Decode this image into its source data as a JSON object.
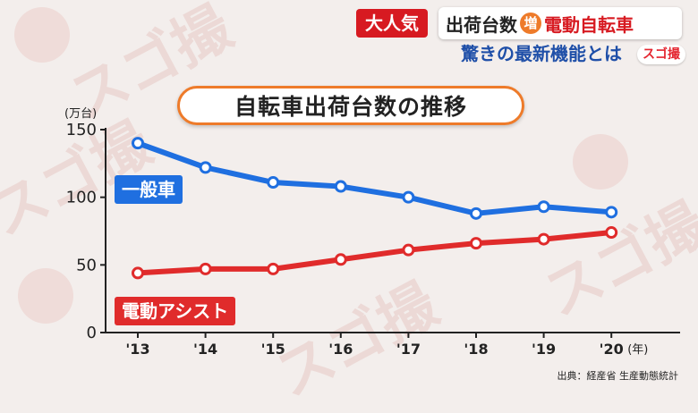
{
  "caption": {
    "tag": "大人気",
    "line1_a": "出荷台数",
    "line1_badge": "増",
    "line1_b": "電動自転車",
    "line2": "驚きの最新機能とは",
    "logo": "スゴ撮"
  },
  "watermark": "スゴ撮",
  "chart_data": {
    "type": "line",
    "title": "自転車出荷台数の推移",
    "ylabel": "(万台)",
    "xlabel": "(年)",
    "categories": [
      "'13",
      "'14",
      "'15",
      "'16",
      "'17",
      "'18",
      "'19",
      "'20"
    ],
    "yticks": [
      "150",
      "100",
      "50",
      "0"
    ],
    "ylim": [
      0,
      150
    ],
    "series": [
      {
        "name": "一般車",
        "color": "#1f6fe0",
        "values": [
          140,
          122,
          111,
          108,
          100,
          88,
          93,
          89
        ]
      },
      {
        "name": "電動アシスト",
        "color": "#e02b2b",
        "values": [
          44,
          47,
          47,
          54,
          61,
          66,
          69,
          74
        ]
      }
    ],
    "source": "出典：経産省 生産動態統計"
  }
}
